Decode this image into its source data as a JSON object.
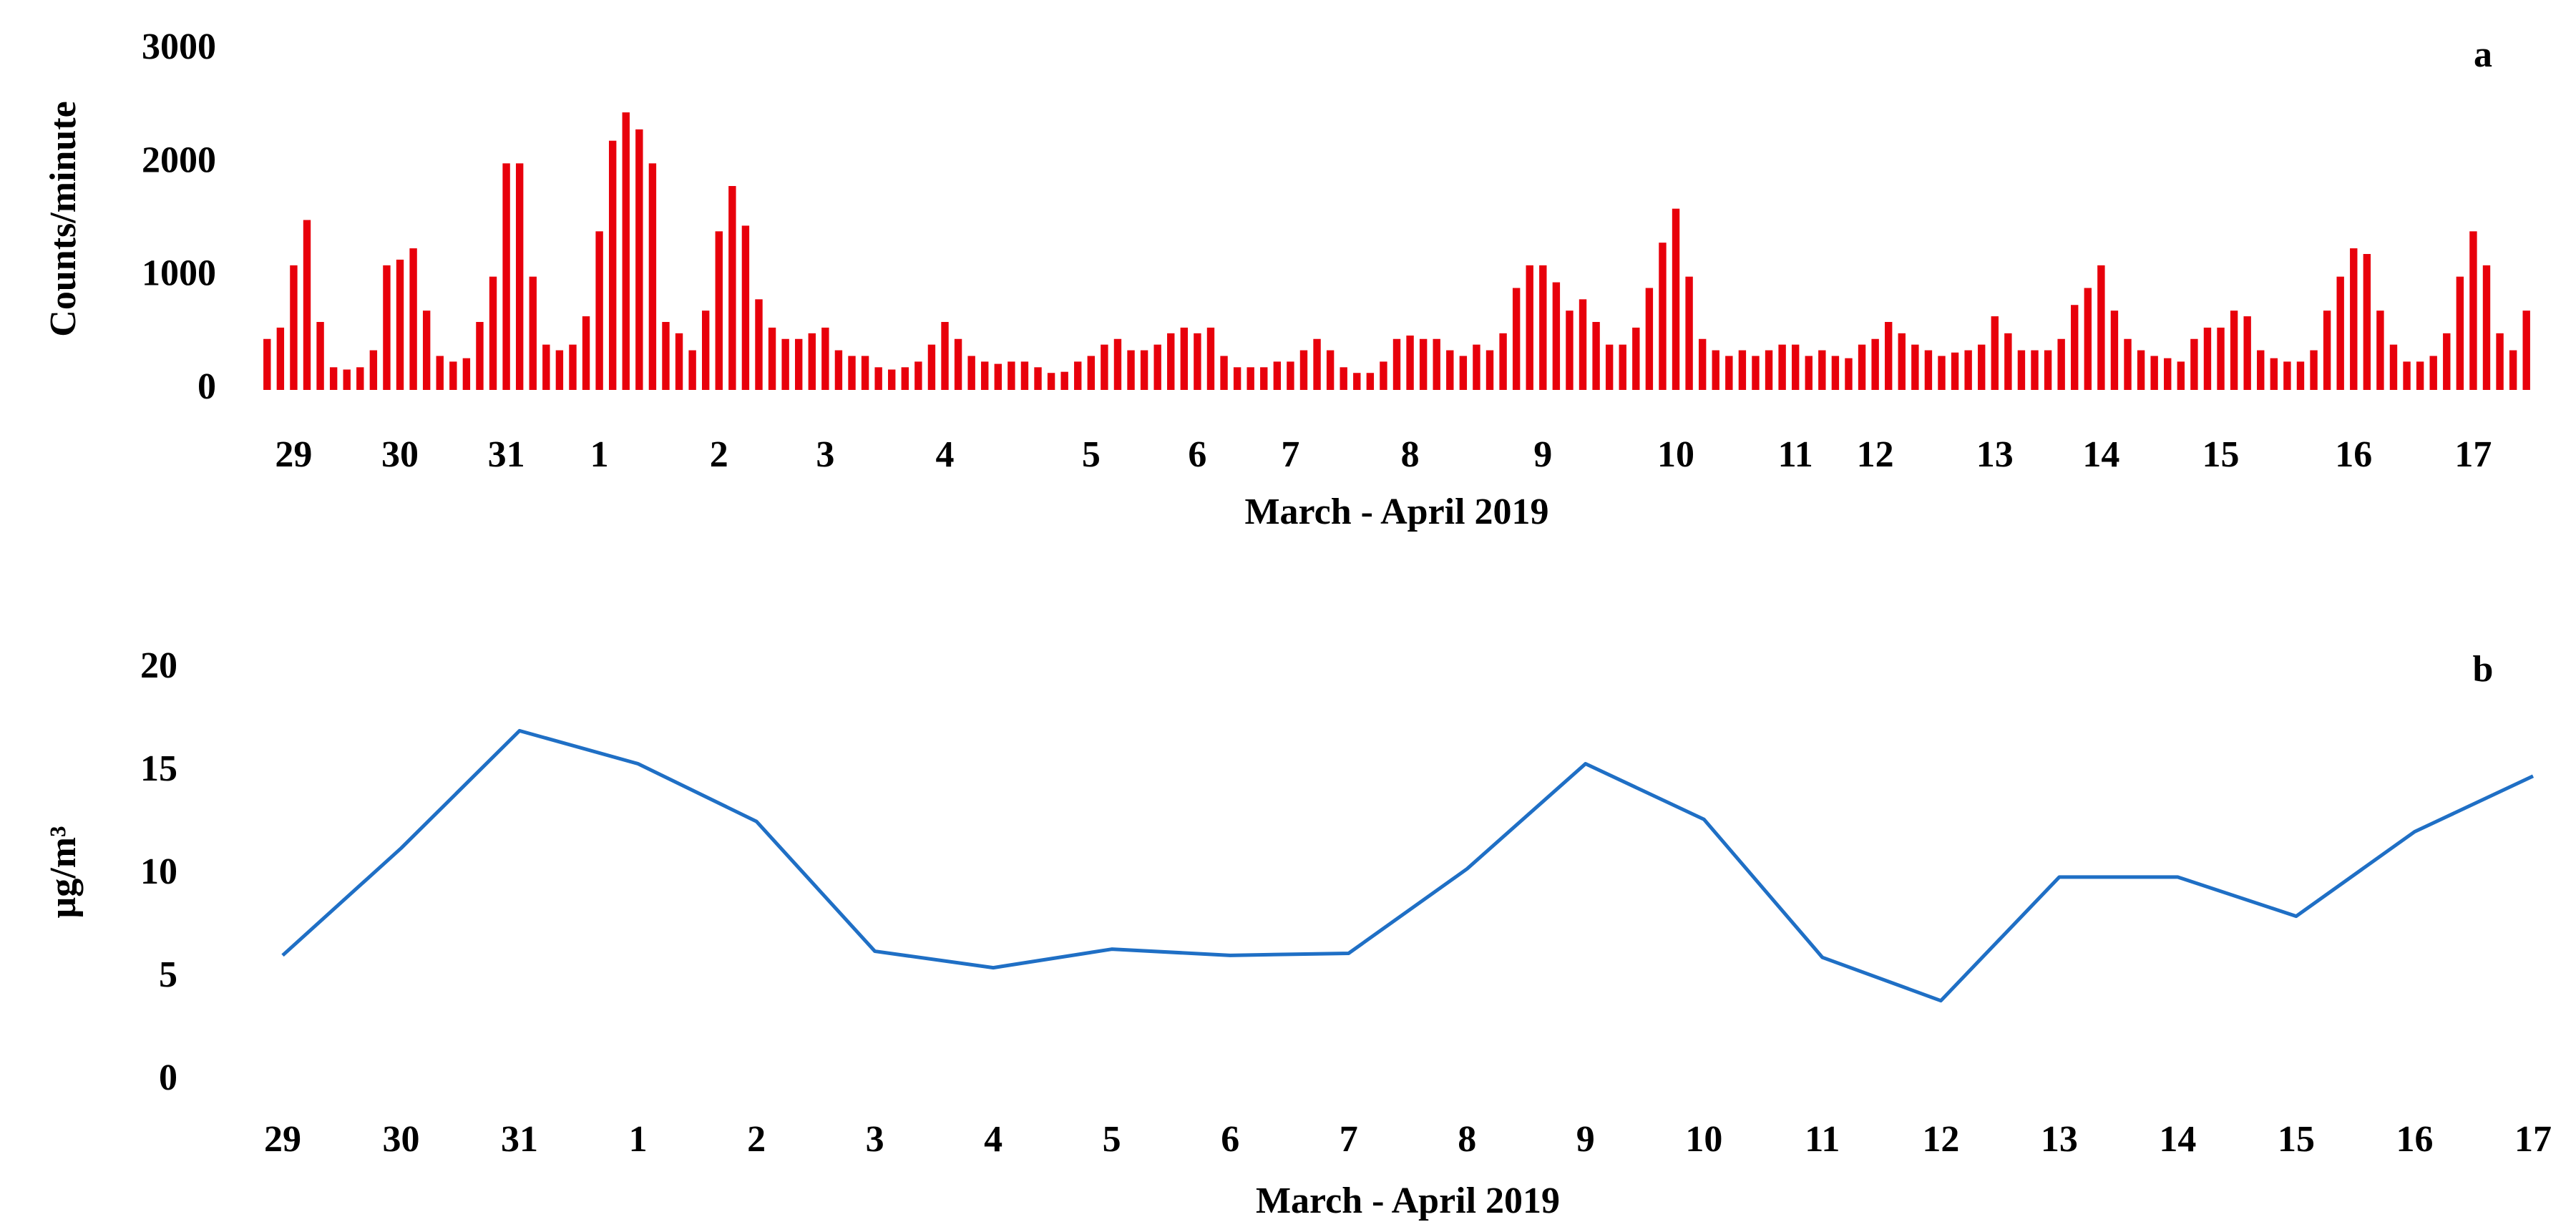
{
  "chart_data": [
    {
      "type": "bar",
      "annotation": "a",
      "y_label": "Counts/minute",
      "x_label": "March - April 2019",
      "color": "#e8000b",
      "ylim": [
        0,
        3000
      ],
      "yticks": [
        0,
        1000,
        2000,
        3000
      ],
      "categories": [
        null,
        null,
        "29",
        null,
        null,
        null,
        null,
        null,
        null,
        null,
        "30",
        null,
        null,
        null,
        null,
        null,
        null,
        null,
        "31",
        null,
        null,
        null,
        null,
        null,
        null,
        "1",
        null,
        null,
        null,
        null,
        null,
        null,
        null,
        null,
        "2",
        null,
        null,
        null,
        null,
        null,
        null,
        null,
        "3",
        null,
        null,
        null,
        null,
        null,
        null,
        null,
        null,
        "4",
        null,
        null,
        null,
        null,
        null,
        null,
        null,
        null,
        null,
        null,
        "5",
        null,
        null,
        null,
        null,
        null,
        null,
        null,
        "6",
        null,
        null,
        null,
        null,
        null,
        null,
        "7",
        null,
        null,
        null,
        null,
        null,
        null,
        null,
        null,
        "8",
        null,
        null,
        null,
        null,
        null,
        null,
        null,
        null,
        null,
        "9",
        null,
        null,
        null,
        null,
        null,
        null,
        null,
        null,
        null,
        "10",
        null,
        null,
        null,
        null,
        null,
        null,
        null,
        null,
        "11",
        null,
        null,
        null,
        null,
        null,
        "12",
        null,
        null,
        null,
        null,
        null,
        null,
        null,
        null,
        "13",
        null,
        null,
        null,
        null,
        null,
        null,
        null,
        "14",
        null,
        null,
        null,
        null,
        null,
        null,
        null,
        null,
        "15",
        null,
        null,
        null,
        null,
        null,
        null,
        null,
        null,
        null,
        "16",
        null,
        null,
        null,
        null,
        null,
        null,
        null,
        null,
        "17",
        null,
        null,
        null,
        null
      ],
      "values": [
        450,
        550,
        1100,
        1500,
        600,
        200,
        180,
        200,
        350,
        1100,
        1150,
        1250,
        700,
        300,
        250,
        280,
        600,
        1000,
        2000,
        2000,
        1000,
        400,
        350,
        400,
        650,
        1400,
        2200,
        2450,
        2300,
        2000,
        600,
        500,
        350,
        700,
        1400,
        1800,
        1450,
        800,
        550,
        450,
        450,
        500,
        550,
        350,
        300,
        300,
        200,
        180,
        200,
        250,
        400,
        600,
        450,
        300,
        250,
        230,
        250,
        250,
        200,
        150,
        160,
        250,
        300,
        400,
        450,
        350,
        350,
        400,
        500,
        550,
        500,
        550,
        300,
        200,
        200,
        200,
        250,
        250,
        350,
        450,
        350,
        200,
        150,
        150,
        250,
        450,
        480,
        450,
        450,
        350,
        300,
        400,
        350,
        500,
        900,
        1100,
        1100,
        950,
        700,
        800,
        600,
        400,
        400,
        550,
        900,
        1300,
        1600,
        1000,
        450,
        350,
        300,
        350,
        300,
        350,
        400,
        400,
        300,
        350,
        300,
        280,
        400,
        450,
        600,
        500,
        400,
        350,
        300,
        330,
        350,
        400,
        650,
        500,
        350,
        350,
        350,
        450,
        750,
        900,
        1100,
        700,
        450,
        350,
        300,
        280,
        250,
        450,
        550,
        550,
        700,
        650,
        350,
        280,
        250,
        250,
        350,
        700,
        1000,
        1250,
        1200,
        700,
        400,
        250,
        250,
        300,
        500,
        1000,
        1400,
        1100,
        500,
        350,
        700
      ]
    },
    {
      "type": "line",
      "annotation": "b",
      "y_label": "µg/m³",
      "x_label": "March - April 2019",
      "color": "#1f6fc5",
      "ylim": [
        0,
        20
      ],
      "yticks": [
        0,
        5,
        10,
        15,
        20
      ],
      "categories": [
        "29",
        "30",
        "31",
        "1",
        "2",
        "3",
        "4",
        "5",
        "6",
        "7",
        "8",
        "9",
        "10",
        "11",
        "12",
        "13",
        "14",
        "15",
        "16",
        "17"
      ],
      "values": [
        6.1,
        11.3,
        17.0,
        15.4,
        12.6,
        6.3,
        5.5,
        6.4,
        6.1,
        6.2,
        10.3,
        15.4,
        12.7,
        6.0,
        3.9,
        9.9,
        9.9,
        8.0,
        12.1,
        14.8
      ]
    }
  ]
}
